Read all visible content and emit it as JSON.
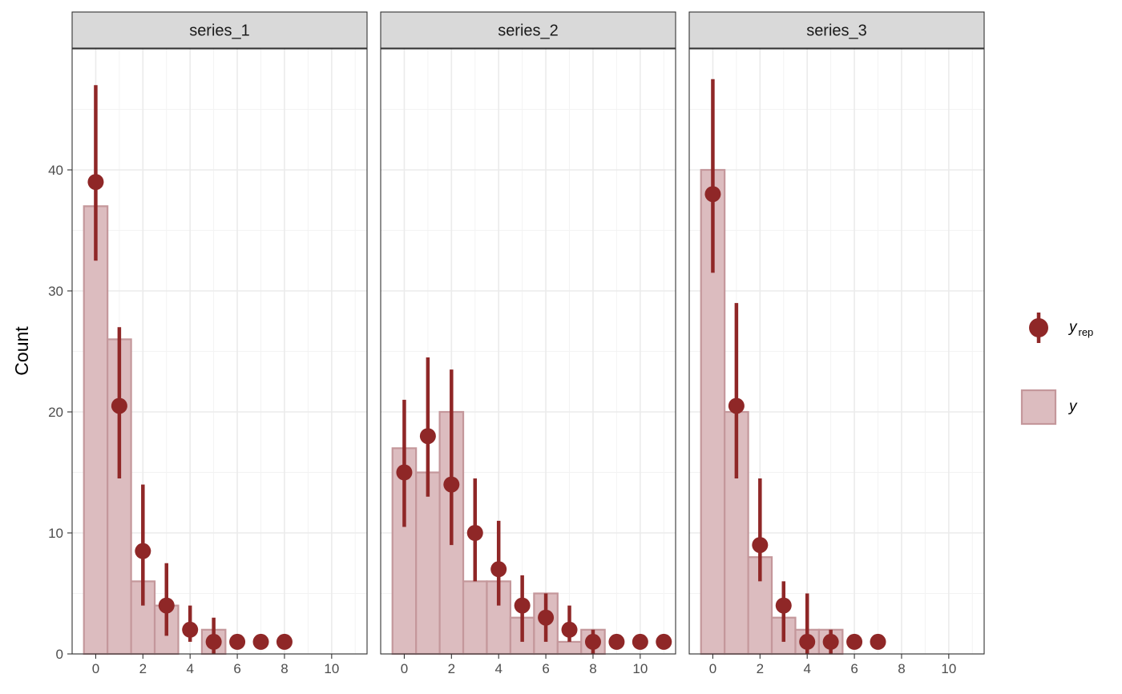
{
  "chart_data": {
    "type": "bar",
    "ylabel": "Count",
    "xlabel": "",
    "xlim": [
      -1,
      11.5
    ],
    "ylim": [
      0,
      50
    ],
    "x_ticks": [
      0,
      2,
      4,
      6,
      8,
      10
    ],
    "y_ticks": [
      0,
      10,
      20,
      30,
      40
    ],
    "colors": {
      "bar_fill": "#dcbcbf",
      "bar_stroke": "#c4979b",
      "point": "#8f2727",
      "strip_fill": "#d9d9d9",
      "grid": "#ebebeb"
    },
    "legend": {
      "position": "right",
      "items": [
        {
          "key": "point",
          "label": "y",
          "subscript": "rep"
        },
        {
          "key": "bar",
          "label": "y",
          "subscript": ""
        }
      ]
    },
    "panels": [
      {
        "title": "series_1",
        "bars": [
          {
            "x": 0,
            "y": 37
          },
          {
            "x": 1,
            "y": 26
          },
          {
            "x": 2,
            "y": 6
          },
          {
            "x": 3,
            "y": 4
          },
          {
            "x": 4,
            "y": 0
          },
          {
            "x": 5,
            "y": 2
          }
        ],
        "points": [
          {
            "x": 0,
            "y": 39,
            "lo": 32.5,
            "hi": 47
          },
          {
            "x": 1,
            "y": 20.5,
            "lo": 14.5,
            "hi": 27
          },
          {
            "x": 2,
            "y": 8.5,
            "lo": 4,
            "hi": 14
          },
          {
            "x": 3,
            "y": 4,
            "lo": 1.5,
            "hi": 7.5
          },
          {
            "x": 4,
            "y": 2,
            "lo": 1,
            "hi": 4
          },
          {
            "x": 5,
            "y": 1,
            "lo": 0,
            "hi": 3
          },
          {
            "x": 6,
            "y": 1,
            "lo": 1,
            "hi": 1
          },
          {
            "x": 7,
            "y": 1,
            "lo": 1,
            "hi": 1
          },
          {
            "x": 8,
            "y": 1,
            "lo": 1,
            "hi": 1
          }
        ]
      },
      {
        "title": "series_2",
        "bars": [
          {
            "x": 0,
            "y": 17
          },
          {
            "x": 1,
            "y": 15
          },
          {
            "x": 2,
            "y": 20
          },
          {
            "x": 3,
            "y": 6
          },
          {
            "x": 4,
            "y": 6
          },
          {
            "x": 5,
            "y": 3
          },
          {
            "x": 6,
            "y": 5
          },
          {
            "x": 7,
            "y": 1
          },
          {
            "x": 8,
            "y": 2
          }
        ],
        "points": [
          {
            "x": 0,
            "y": 15,
            "lo": 10.5,
            "hi": 21
          },
          {
            "x": 1,
            "y": 18,
            "lo": 13,
            "hi": 24.5
          },
          {
            "x": 2,
            "y": 14,
            "lo": 9,
            "hi": 23.5
          },
          {
            "x": 3,
            "y": 10,
            "lo": 6,
            "hi": 14.5
          },
          {
            "x": 4,
            "y": 7,
            "lo": 4,
            "hi": 11
          },
          {
            "x": 5,
            "y": 4,
            "lo": 1,
            "hi": 6.5
          },
          {
            "x": 6,
            "y": 3,
            "lo": 1,
            "hi": 5
          },
          {
            "x": 7,
            "y": 2,
            "lo": 1,
            "hi": 4
          },
          {
            "x": 8,
            "y": 1,
            "lo": 0,
            "hi": 2
          },
          {
            "x": 9,
            "y": 1,
            "lo": 1,
            "hi": 1
          },
          {
            "x": 10,
            "y": 1,
            "lo": 1,
            "hi": 1
          },
          {
            "x": 11,
            "y": 1,
            "lo": 1,
            "hi": 1
          }
        ]
      },
      {
        "title": "series_3",
        "bars": [
          {
            "x": 0,
            "y": 40
          },
          {
            "x": 1,
            "y": 20
          },
          {
            "x": 2,
            "y": 8
          },
          {
            "x": 3,
            "y": 3
          },
          {
            "x": 4,
            "y": 2
          },
          {
            "x": 5,
            "y": 2
          }
        ],
        "points": [
          {
            "x": 0,
            "y": 38,
            "lo": 31.5,
            "hi": 47.5
          },
          {
            "x": 1,
            "y": 20.5,
            "lo": 14.5,
            "hi": 29
          },
          {
            "x": 2,
            "y": 9,
            "lo": 6,
            "hi": 14.5
          },
          {
            "x": 3,
            "y": 4,
            "lo": 1,
            "hi": 6
          },
          {
            "x": 4,
            "y": 1,
            "lo": 0,
            "hi": 5
          },
          {
            "x": 5,
            "y": 1,
            "lo": 0,
            "hi": 2
          },
          {
            "x": 6,
            "y": 1,
            "lo": 1,
            "hi": 1
          },
          {
            "x": 7,
            "y": 1,
            "lo": 1,
            "hi": 1
          }
        ]
      }
    ]
  }
}
